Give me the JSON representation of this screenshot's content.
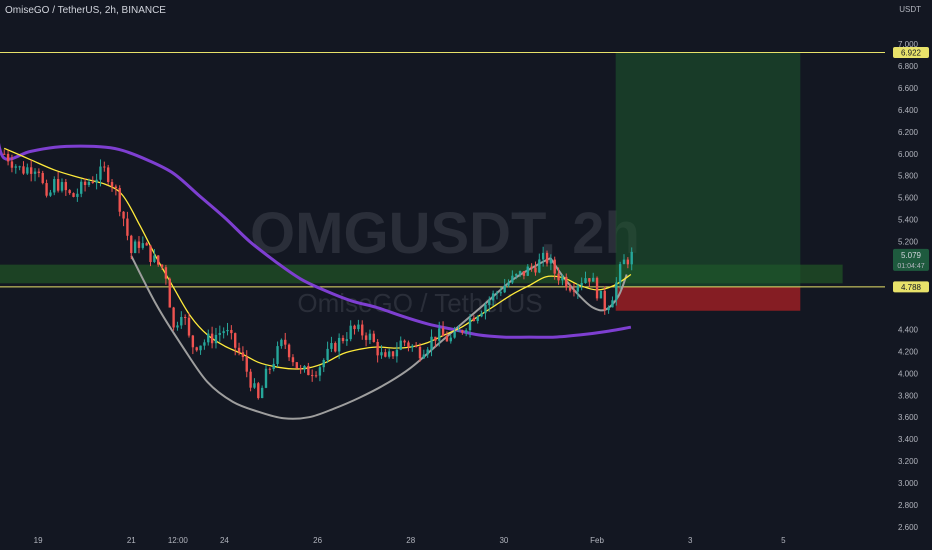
{
  "header": {
    "title": "OmiseGO / TetherUS, 2h, BINANCE"
  },
  "watermark": {
    "symbol": "OMGUSDT, 2h",
    "name": "OmiseGO / TetherUS"
  },
  "colors": {
    "background": "#131722",
    "up": "#26a69a",
    "down": "#ef5350",
    "ma_fast": "#ffeb3b",
    "ma_slow": "#7e3fd1",
    "cup_line": "#9e9e9e",
    "profit_zone": "#1e5a2e",
    "loss_zone": "#8b1e24",
    "support_band": "#1f4a24",
    "level_line": "#e8e26a"
  },
  "chart_data": {
    "type": "candlestick",
    "symbol": "OMGUSDT",
    "timeframe": "2h",
    "exchange": "BINANCE",
    "y_axis_title": "USDT",
    "ylim": [
      2.6,
      7.0
    ],
    "y_ticks": [
      "7.000",
      "6.800",
      "6.600",
      "6.400",
      "6.200",
      "6.000",
      "5.800",
      "5.600",
      "5.400",
      "5.200",
      "4.400",
      "4.200",
      "4.000",
      "3.800",
      "3.600",
      "3.400",
      "3.200",
      "3.000",
      "2.800",
      "2.600"
    ],
    "x_ticks": [
      {
        "label": "19",
        "t": 4
      },
      {
        "label": "21",
        "t": 15
      },
      {
        "label": "12:00",
        "t": 20.5
      },
      {
        "label": "24",
        "t": 26
      },
      {
        "label": "26",
        "t": 37
      },
      {
        "label": "28",
        "t": 48
      },
      {
        "label": "30",
        "t": 59
      },
      {
        "label": "Feb",
        "t": 70
      },
      {
        "label": "3",
        "t": 81
      },
      {
        "label": "5",
        "t": 92
      }
    ],
    "t_range": [
      -0.5,
      104
    ],
    "t_last_candle": 74,
    "price_labels": [
      {
        "label": "6.922",
        "value": 6.922,
        "style": "level"
      },
      {
        "label": "5.079",
        "value": 5.079,
        "style": "current",
        "sub": "01:04:47"
      },
      {
        "label": "4.788",
        "value": 4.788,
        "style": "level"
      }
    ],
    "horizontal_levels": [
      6.922,
      4.788
    ],
    "support_band": {
      "top": 4.99,
      "bottom": 4.82,
      "t_end": 99
    },
    "position": {
      "type": "long",
      "entry": 4.788,
      "target": 6.922,
      "stop": 4.57,
      "t_start": 72.2,
      "t_end": 94
    },
    "key_points": [
      [
        0,
        6.0
      ],
      [
        2,
        5.85
      ],
      [
        4,
        5.9
      ],
      [
        5,
        5.55
      ],
      [
        6,
        5.75
      ],
      [
        8,
        5.6
      ],
      [
        10,
        5.75
      ],
      [
        12,
        5.85
      ],
      [
        13,
        5.7
      ],
      [
        14,
        5.45
      ],
      [
        15,
        5.1
      ],
      [
        16,
        5.2
      ],
      [
        18,
        5.0
      ],
      [
        19,
        4.95
      ],
      [
        20,
        4.4
      ],
      [
        21,
        4.6
      ],
      [
        22,
        4.25
      ],
      [
        24,
        4.3
      ],
      [
        26,
        4.4
      ],
      [
        28,
        4.15
      ],
      [
        29,
        3.95
      ],
      [
        30,
        3.75
      ],
      [
        31,
        4.0
      ],
      [
        33,
        4.3
      ],
      [
        35,
        4.0
      ],
      [
        37,
        4.05
      ],
      [
        39,
        4.25
      ],
      [
        41,
        4.4
      ],
      [
        43,
        4.35
      ],
      [
        45,
        4.1
      ],
      [
        47,
        4.3
      ],
      [
        49,
        4.2
      ],
      [
        51,
        4.35
      ],
      [
        53,
        4.3
      ],
      [
        55,
        4.5
      ],
      [
        57,
        4.65
      ],
      [
        59,
        4.8
      ],
      [
        61,
        4.9
      ],
      [
        63,
        5.0
      ],
      [
        64,
        5.05
      ],
      [
        65,
        4.92
      ],
      [
        67,
        4.8
      ],
      [
        69,
        4.9
      ],
      [
        70,
        4.75
      ],
      [
        71,
        4.6
      ],
      [
        72,
        4.75
      ],
      [
        73,
        5.0
      ],
      [
        74,
        5.07
      ]
    ],
    "ma_fast": [
      [
        0,
        6.05
      ],
      [
        3,
        5.95
      ],
      [
        6,
        5.85
      ],
      [
        9,
        5.78
      ],
      [
        12,
        5.72
      ],
      [
        14,
        5.62
      ],
      [
        16,
        5.35
      ],
      [
        18,
        5.05
      ],
      [
        20,
        4.78
      ],
      [
        22,
        4.52
      ],
      [
        24,
        4.35
      ],
      [
        26,
        4.25
      ],
      [
        28,
        4.18
      ],
      [
        30,
        4.1
      ],
      [
        32,
        4.06
      ],
      [
        34,
        4.04
      ],
      [
        36,
        4.05
      ],
      [
        38,
        4.1
      ],
      [
        40,
        4.18
      ],
      [
        42,
        4.22
      ],
      [
        44,
        4.24
      ],
      [
        46,
        4.23
      ],
      [
        48,
        4.24
      ],
      [
        50,
        4.28
      ],
      [
        52,
        4.35
      ],
      [
        54,
        4.42
      ],
      [
        56,
        4.52
      ],
      [
        58,
        4.62
      ],
      [
        60,
        4.72
      ],
      [
        62,
        4.8
      ],
      [
        64,
        4.88
      ],
      [
        66,
        4.87
      ],
      [
        68,
        4.8
      ],
      [
        70,
        4.76
      ],
      [
        72,
        4.8
      ],
      [
        74,
        4.9
      ]
    ],
    "ma_slow": [
      [
        0,
        5.96
      ],
      [
        3,
        6.02
      ],
      [
        6,
        6.06
      ],
      [
        9,
        6.07
      ],
      [
        12,
        6.06
      ],
      [
        14,
        6.03
      ],
      [
        17,
        5.94
      ],
      [
        20,
        5.82
      ],
      [
        23,
        5.62
      ],
      [
        26,
        5.42
      ],
      [
        29,
        5.2
      ],
      [
        32,
        5.02
      ],
      [
        35,
        4.86
      ],
      [
        38,
        4.75
      ],
      [
        41,
        4.66
      ],
      [
        44,
        4.6
      ],
      [
        47,
        4.52
      ],
      [
        50,
        4.45
      ],
      [
        53,
        4.4
      ],
      [
        56,
        4.35
      ],
      [
        59,
        4.33
      ],
      [
        62,
        4.33
      ],
      [
        65,
        4.33
      ],
      [
        68,
        4.35
      ],
      [
        71,
        4.38
      ],
      [
        74,
        4.42
      ]
    ],
    "ma_slow_lead": [
      [
        -1,
        6.25
      ],
      [
        0,
        5.96
      ]
    ],
    "cup_curve": [
      [
        15,
        5.07
      ],
      [
        18,
        4.62
      ],
      [
        21,
        4.25
      ],
      [
        24,
        3.92
      ],
      [
        27,
        3.74
      ],
      [
        30,
        3.65
      ],
      [
        33,
        3.59
      ],
      [
        36,
        3.6
      ],
      [
        39,
        3.68
      ],
      [
        42,
        3.78
      ],
      [
        45,
        3.9
      ],
      [
        48,
        4.05
      ],
      [
        51,
        4.25
      ],
      [
        54,
        4.45
      ],
      [
        57,
        4.65
      ],
      [
        60,
        4.85
      ],
      [
        63,
        4.99
      ],
      [
        64.5,
        5.05
      ]
    ],
    "handle_curve": [
      [
        64.5,
        5.05
      ],
      [
        66,
        4.88
      ],
      [
        68,
        4.7
      ],
      [
        69.5,
        4.6
      ],
      [
        71,
        4.58
      ],
      [
        72.5,
        4.7
      ],
      [
        73.5,
        4.9
      ]
    ]
  }
}
